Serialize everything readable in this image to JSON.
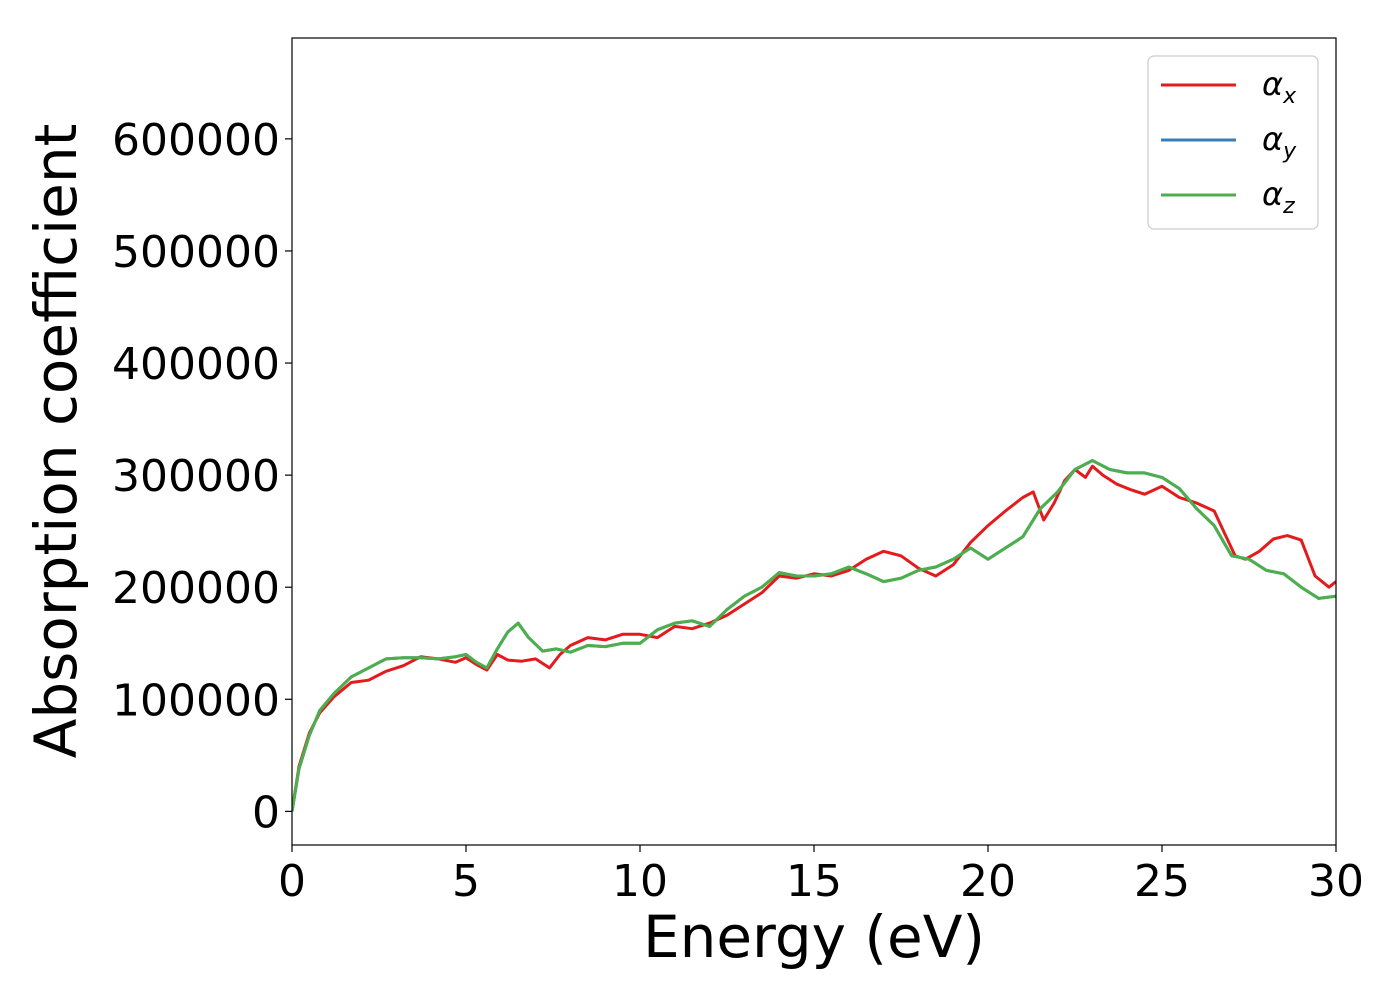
{
  "chart_data": {
    "type": "line",
    "title": "",
    "xlabel": "Energy (eV)",
    "ylabel": "Absorption coefficient",
    "xlim": [
      0,
      30
    ],
    "ylim": [
      -30000,
      690000
    ],
    "xticks": [
      0,
      5,
      10,
      15,
      20,
      25,
      30
    ],
    "yticks": [
      0,
      100000,
      200000,
      300000,
      400000,
      500000,
      600000
    ],
    "grid": false,
    "legend_position": "top-right",
    "series": [
      {
        "name": "αx",
        "symbol": "α",
        "subscript": "x",
        "color": "#e41a1c",
        "x": [
          0,
          0.2,
          0.5,
          0.8,
          1.2,
          1.7,
          2.2,
          2.7,
          3.2,
          3.7,
          4.2,
          4.7,
          5.0,
          5.3,
          5.6,
          5.9,
          6.2,
          6.6,
          7.0,
          7.4,
          7.7,
          8.0,
          8.5,
          9.0,
          9.5,
          10.0,
          10.5,
          11.0,
          11.5,
          12.0,
          12.5,
          13.0,
          13.5,
          14.0,
          14.5,
          15.0,
          15.5,
          16.0,
          16.5,
          17.0,
          17.5,
          18.0,
          18.5,
          19.0,
          19.5,
          20.0,
          20.5,
          21.0,
          21.3,
          21.6,
          21.9,
          22.2,
          22.5,
          22.8,
          23.0,
          23.3,
          23.7,
          24.1,
          24.5,
          25.0,
          25.5,
          26.0,
          26.5,
          26.8,
          27.1,
          27.4,
          27.8,
          28.2,
          28.6,
          29.0,
          29.4,
          29.8,
          30.0
        ],
        "values": [
          0,
          40000,
          70000,
          88000,
          102000,
          115000,
          117000,
          125000,
          130000,
          138000,
          136000,
          133000,
          137000,
          131000,
          126000,
          140000,
          135000,
          134000,
          136000,
          128000,
          140000,
          148000,
          155000,
          153000,
          158000,
          158000,
          155000,
          165000,
          163000,
          168000,
          175000,
          185000,
          195000,
          210000,
          208000,
          212000,
          210000,
          215000,
          225000,
          232000,
          228000,
          217000,
          210000,
          220000,
          240000,
          255000,
          268000,
          280000,
          285000,
          260000,
          275000,
          295000,
          305000,
          298000,
          308000,
          300000,
          292000,
          287000,
          283000,
          290000,
          280000,
          275000,
          268000,
          248000,
          228000,
          225000,
          232000,
          243000,
          246000,
          242000,
          210000,
          200000,
          205000
        ]
      },
      {
        "name": "αy",
        "symbol": "α",
        "subscript": "y",
        "color": "#377eb8",
        "x": [
          0,
          0.2,
          0.5,
          0.8,
          1.2,
          1.7,
          2.2,
          2.7,
          3.2,
          3.7,
          4.2,
          4.7,
          5.0,
          5.3,
          5.6,
          5.9,
          6.2,
          6.5,
          6.8,
          7.2,
          7.6,
          8.0,
          8.5,
          9.0,
          9.5,
          10.0,
          10.5,
          11.0,
          11.5,
          12.0,
          12.5,
          13.0,
          13.5,
          14.0,
          14.5,
          15.0,
          15.5,
          16.0,
          16.5,
          17.0,
          17.5,
          18.0,
          18.5,
          19.0,
          19.5,
          20.0,
          20.5,
          21.0,
          21.5,
          22.0,
          22.5,
          23.0,
          23.5,
          24.0,
          24.5,
          25.0,
          25.5,
          26.0,
          26.5,
          27.0,
          27.5,
          28.0,
          28.5,
          29.0,
          29.5,
          30.0
        ],
        "values": [
          0,
          38000,
          68000,
          90000,
          105000,
          120000,
          128000,
          136000,
          137000,
          137000,
          136000,
          138000,
          140000,
          133000,
          128000,
          145000,
          160000,
          168000,
          155000,
          143000,
          145000,
          142000,
          148000,
          147000,
          150000,
          150000,
          162000,
          168000,
          170000,
          165000,
          180000,
          192000,
          200000,
          213000,
          210000,
          210000,
          212000,
          218000,
          212000,
          205000,
          208000,
          215000,
          218000,
          225000,
          235000,
          225000,
          235000,
          245000,
          270000,
          285000,
          305000,
          313000,
          305000,
          302000,
          302000,
          298000,
          288000,
          270000,
          255000,
          228000,
          225000,
          215000,
          212000,
          200000,
          190000,
          192000
        ]
      },
      {
        "name": "αz",
        "symbol": "α",
        "subscript": "z",
        "color": "#4daf4a",
        "x": [
          0,
          0.2,
          0.5,
          0.8,
          1.2,
          1.7,
          2.2,
          2.7,
          3.2,
          3.7,
          4.2,
          4.7,
          5.0,
          5.3,
          5.6,
          5.9,
          6.2,
          6.5,
          6.8,
          7.2,
          7.6,
          8.0,
          8.5,
          9.0,
          9.5,
          10.0,
          10.5,
          11.0,
          11.5,
          12.0,
          12.5,
          13.0,
          13.5,
          14.0,
          14.5,
          15.0,
          15.5,
          16.0,
          16.5,
          17.0,
          17.5,
          18.0,
          18.5,
          19.0,
          19.5,
          20.0,
          20.5,
          21.0,
          21.5,
          22.0,
          22.5,
          23.0,
          23.5,
          24.0,
          24.5,
          25.0,
          25.5,
          26.0,
          26.5,
          27.0,
          27.5,
          28.0,
          28.5,
          29.0,
          29.5,
          30.0
        ],
        "values": [
          0,
          38000,
          68000,
          90000,
          105000,
          120000,
          128000,
          136000,
          137000,
          137000,
          136000,
          138000,
          140000,
          133000,
          128000,
          145000,
          160000,
          168000,
          155000,
          143000,
          145000,
          142000,
          148000,
          147000,
          150000,
          150000,
          162000,
          168000,
          170000,
          165000,
          180000,
          192000,
          200000,
          213000,
          210000,
          210000,
          212000,
          218000,
          212000,
          205000,
          208000,
          215000,
          218000,
          225000,
          235000,
          225000,
          235000,
          245000,
          270000,
          285000,
          305000,
          313000,
          305000,
          302000,
          302000,
          298000,
          288000,
          270000,
          255000,
          228000,
          225000,
          215000,
          212000,
          200000,
          190000,
          192000
        ]
      }
    ]
  }
}
